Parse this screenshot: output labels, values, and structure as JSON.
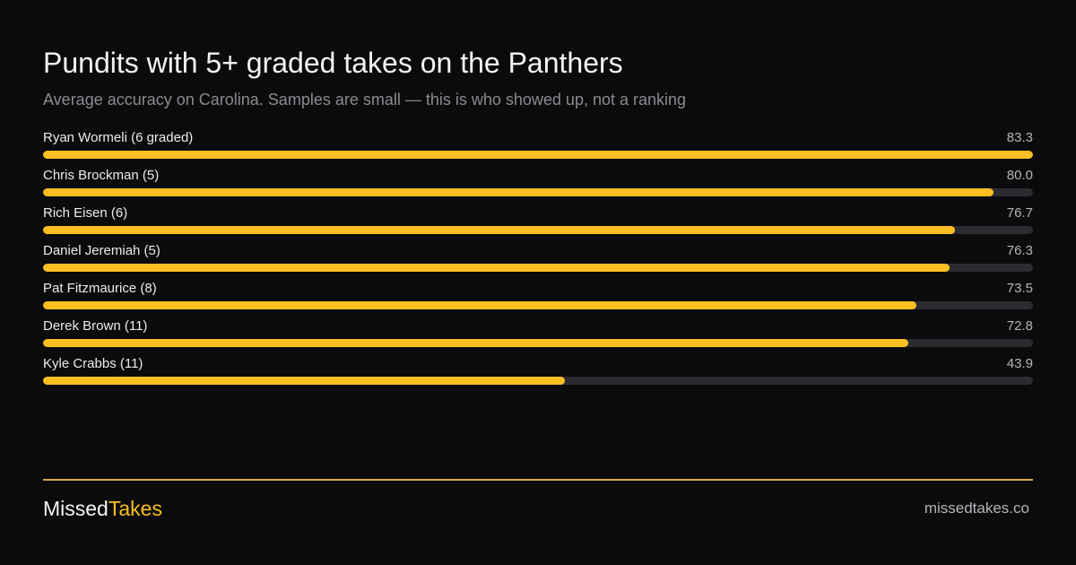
{
  "header": {
    "title": "Pundits with 5+ graded takes on the Panthers",
    "subtitle": "Average accuracy on Carolina. Samples are small — this is who showed up, not a ranking"
  },
  "chart_data": {
    "type": "bar",
    "orientation": "horizontal",
    "categories": [
      "Ryan Wormeli (6 graded)",
      "Chris Brockman (5)",
      "Rich Eisen (6)",
      "Daniel Jeremiah (5)",
      "Pat Fitzmaurice (8)",
      "Derek Brown (11)",
      "Kyle Crabbs (11)"
    ],
    "values": [
      83.3,
      80.0,
      76.7,
      76.3,
      73.5,
      72.8,
      43.9
    ],
    "value_labels": [
      "83.3",
      "80.0",
      "76.7",
      "76.3",
      "73.5",
      "72.8",
      "43.9"
    ],
    "title": "Pundits with 5+ graded takes on the Panthers",
    "subtitle": "Average accuracy on Carolina. Samples are small — this is who showed up, not a ranking",
    "xlim": [
      0,
      83.3
    ],
    "grid": false,
    "colors": {
      "bar": "#fbbf24",
      "track": "#2c2b31"
    }
  },
  "footer": {
    "brand_part1": "Missed",
    "brand_part2": "Takes",
    "site": "missedtakes.co",
    "accent_color": "#fbbf24",
    "divider_color": "#d9a84a"
  }
}
